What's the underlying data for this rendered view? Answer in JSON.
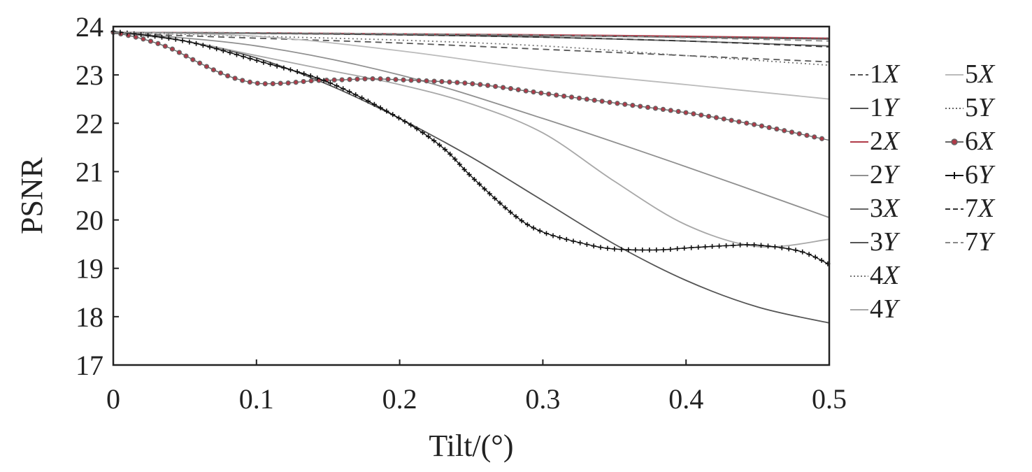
{
  "chart_data": {
    "type": "line",
    "title": "",
    "xlabel": "Tilt/(°)",
    "ylabel": "PSNR",
    "xlim": [
      0,
      0.5
    ],
    "ylim": [
      17,
      24
    ],
    "xticks": [
      0,
      0.1,
      0.2,
      0.3,
      0.4,
      0.5
    ],
    "xtick_labels": [
      "0",
      "0.1",
      "0.2",
      "0.3",
      "0.4",
      "0.5"
    ],
    "yticks": [
      17,
      18,
      19,
      20,
      21,
      22,
      23,
      24
    ],
    "ytick_labels": [
      "17",
      "18",
      "19",
      "20",
      "21",
      "22",
      "23",
      "24"
    ],
    "grid": false,
    "legend_position": "right-outside",
    "series": [
      {
        "name": "1X",
        "num": "1",
        "axis": "X",
        "color": "#555555",
        "style": "dashed",
        "x": [
          0,
          0.1,
          0.2,
          0.3,
          0.4,
          0.5
        ],
        "y": [
          23.86,
          23.76,
          23.66,
          23.53,
          23.4,
          23.27
        ]
      },
      {
        "name": "1Y",
        "num": "1",
        "axis": "Y",
        "color": "#555555",
        "style": "solid",
        "x": [
          0,
          0.1,
          0.2,
          0.3,
          0.4,
          0.5
        ],
        "y": [
          23.88,
          23.86,
          23.84,
          23.81,
          23.78,
          23.74
        ]
      },
      {
        "name": "2X",
        "num": "2",
        "axis": "X",
        "color": "#b03a48",
        "style": "solid",
        "x": [
          0,
          0.1,
          0.2,
          0.3,
          0.4,
          0.5
        ],
        "y": [
          23.88,
          23.87,
          23.85,
          23.83,
          23.8,
          23.76
        ]
      },
      {
        "name": "2Y",
        "num": "2",
        "axis": "Y",
        "color": "#909090",
        "style": "solid",
        "x": [
          0,
          0.1,
          0.2,
          0.3,
          0.4,
          0.5
        ],
        "y": [
          23.88,
          23.6,
          23.0,
          22.1,
          21.1,
          20.05
        ]
      },
      {
        "name": "3X",
        "num": "3",
        "axis": "X",
        "color": "#666666",
        "style": "solid",
        "x": [
          0,
          0.1,
          0.2,
          0.3,
          0.4,
          0.5
        ],
        "y": [
          23.88,
          23.86,
          23.83,
          23.78,
          23.7,
          23.6
        ]
      },
      {
        "name": "3Y",
        "num": "3",
        "axis": "Y",
        "color": "#555555",
        "style": "solid",
        "x": [
          0,
          0.05,
          0.1,
          0.15,
          0.2,
          0.25,
          0.3,
          0.35,
          0.4,
          0.45,
          0.5
        ],
        "y": [
          23.9,
          23.7,
          23.35,
          22.8,
          22.1,
          21.3,
          20.4,
          19.5,
          18.75,
          18.2,
          17.87
        ]
      },
      {
        "name": "4X",
        "num": "4",
        "axis": "X",
        "color": "#777777",
        "style": "dotted",
        "x": [
          0,
          0.1,
          0.2,
          0.3,
          0.4,
          0.5
        ],
        "y": [
          23.88,
          23.8,
          23.72,
          23.6,
          23.4,
          23.2
        ]
      },
      {
        "name": "4Y",
        "num": "4",
        "axis": "Y",
        "color": "#a8a8a8",
        "style": "solid",
        "x": [
          0,
          0.05,
          0.1,
          0.15,
          0.2,
          0.25,
          0.3,
          0.35,
          0.4,
          0.45,
          0.5
        ],
        "y": [
          23.88,
          23.7,
          23.4,
          23.1,
          22.8,
          22.4,
          21.8,
          20.8,
          19.9,
          19.45,
          19.6
        ]
      },
      {
        "name": "5X",
        "num": "5",
        "axis": "X",
        "color": "#bbbbbb",
        "style": "solid",
        "x": [
          0,
          0.1,
          0.2,
          0.3,
          0.4,
          0.5
        ],
        "y": [
          23.88,
          23.8,
          23.5,
          23.1,
          22.8,
          22.5
        ]
      },
      {
        "name": "5Y",
        "num": "5",
        "axis": "Y",
        "color": "#666666",
        "style": "dotted",
        "x": [
          0,
          0.1,
          0.2,
          0.3,
          0.4,
          0.5
        ],
        "y": [
          23.88,
          23.87,
          23.85,
          23.82,
          23.79,
          23.76
        ]
      },
      {
        "name": "6X",
        "num": "6",
        "axis": "X",
        "color": "#666666",
        "marker_fill": "#b03a48",
        "style": "circle",
        "x": [
          0,
          0.02,
          0.04,
          0.06,
          0.08,
          0.1,
          0.12,
          0.14,
          0.16,
          0.18,
          0.2,
          0.25,
          0.3,
          0.35,
          0.4,
          0.45,
          0.5
        ],
        "y": [
          23.88,
          23.75,
          23.55,
          23.25,
          22.98,
          22.83,
          22.83,
          22.88,
          22.9,
          22.92,
          22.9,
          22.82,
          22.62,
          22.42,
          22.22,
          21.96,
          21.65
        ]
      },
      {
        "name": "6Y",
        "num": "6",
        "axis": "Y",
        "color": "#111111",
        "style": "plus",
        "x": [
          0,
          0.05,
          0.1,
          0.15,
          0.2,
          0.23,
          0.25,
          0.28,
          0.3,
          0.33,
          0.35,
          0.38,
          0.4,
          0.43,
          0.45,
          0.48,
          0.5
        ],
        "y": [
          23.9,
          23.7,
          23.3,
          22.85,
          22.1,
          21.5,
          20.9,
          20.1,
          19.75,
          19.5,
          19.4,
          19.38,
          19.42,
          19.47,
          19.48,
          19.35,
          19.08
        ]
      },
      {
        "name": "7X",
        "num": "7",
        "axis": "X",
        "color": "#333333",
        "style": "dashed",
        "x": [
          0,
          0.1,
          0.2,
          0.3,
          0.4,
          0.5
        ],
        "y": [
          23.88,
          23.86,
          23.83,
          23.78,
          23.7,
          23.58
        ]
      },
      {
        "name": "7Y",
        "num": "7",
        "axis": "Y",
        "color": "#888888",
        "style": "dashed",
        "x": [
          0,
          0.1,
          0.2,
          0.3,
          0.4,
          0.5
        ],
        "y": [
          23.88,
          23.87,
          23.85,
          23.82,
          23.77,
          23.7
        ]
      }
    ]
  }
}
